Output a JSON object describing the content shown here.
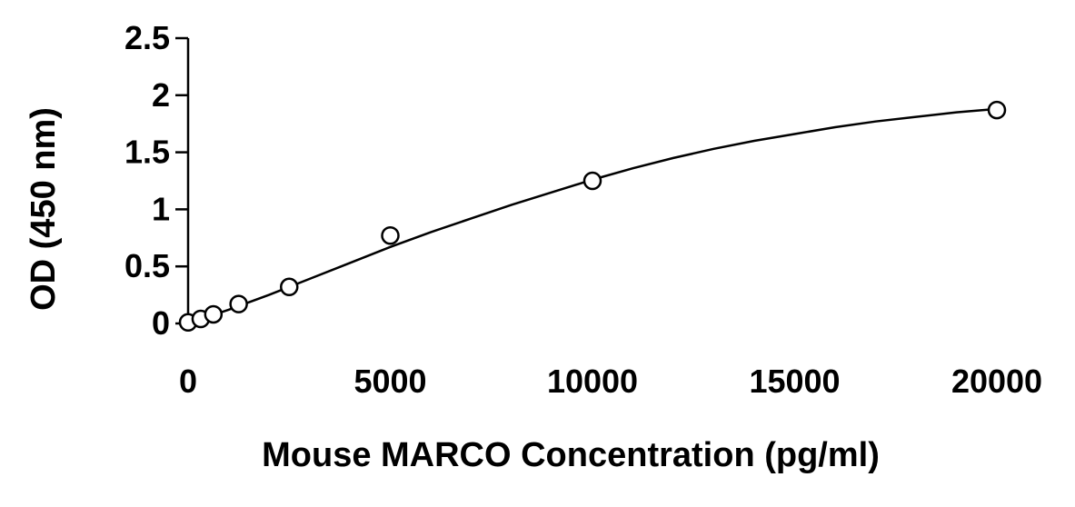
{
  "chart_data": {
    "type": "scatter",
    "title": "",
    "xlabel": "Mouse MARCO Concentration (pg/ml)",
    "ylabel": "OD (450 nm)",
    "xlim": [
      0,
      20000
    ],
    "ylim": [
      0,
      2.5
    ],
    "x_ticks": [
      0,
      5000,
      10000,
      15000,
      20000
    ],
    "y_ticks": [
      0,
      0.5,
      1,
      1.5,
      2,
      2.5
    ],
    "x_tick_labels": [
      "0",
      "5000",
      "10000",
      "15000",
      "20000"
    ],
    "y_tick_labels": [
      "0",
      "0.5",
      "1",
      "1.5",
      "2",
      "2.5"
    ],
    "grid": false,
    "legend": "none",
    "series": [
      {
        "x": [
          0,
          312.5,
          625,
          1250,
          2500,
          5000,
          10000,
          20000
        ],
        "y": [
          0.01,
          0.04,
          0.08,
          0.17,
          0.32,
          0.77,
          1.25,
          1.87
        ]
      }
    ],
    "fit_curve": {
      "x": [
        0,
        1000,
        2000,
        3000,
        4000,
        5000,
        6000,
        7000,
        8000,
        9000,
        10000,
        11000,
        12000,
        13000,
        14000,
        15000,
        16000,
        17000,
        18000,
        19000,
        20000
      ],
      "y": [
        0.0,
        0.12,
        0.25,
        0.39,
        0.53,
        0.67,
        0.8,
        0.92,
        1.04,
        1.15,
        1.26,
        1.36,
        1.45,
        1.53,
        1.6,
        1.66,
        1.72,
        1.77,
        1.81,
        1.85,
        1.88
      ]
    }
  }
}
